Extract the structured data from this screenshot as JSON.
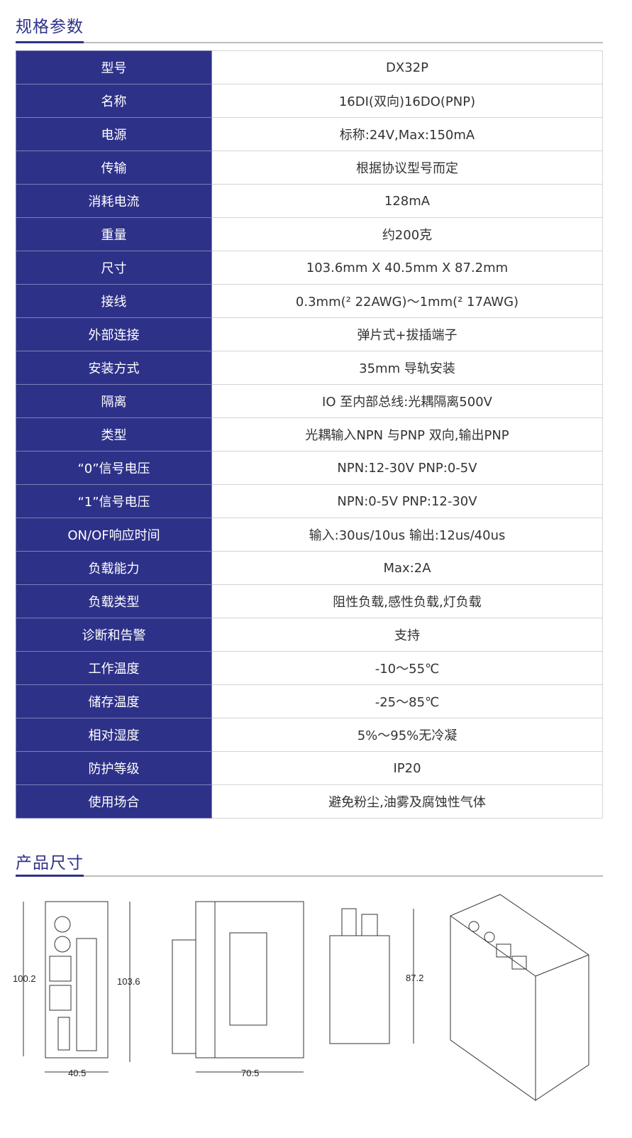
{
  "spec_section": {
    "title": "规格参数"
  },
  "specs": [
    {
      "label": "型号",
      "value": "DX32P"
    },
    {
      "label": "名称",
      "value": "16DI(双向)16DO(PNP)"
    },
    {
      "label": "电源",
      "value": "标称:24V,Max:150mA"
    },
    {
      "label": "传输",
      "value": "根据协议型号而定"
    },
    {
      "label": "消耗电流",
      "value": "128mA"
    },
    {
      "label": "重量",
      "value": "约200克"
    },
    {
      "label": "尺寸",
      "value": "103.6mm X 40.5mm X 87.2mm"
    },
    {
      "label": "接线",
      "value": "0.3mm(² 22AWG)～1mm(² 17AWG)"
    },
    {
      "label": "外部连接",
      "value": "弹片式+拔插端子"
    },
    {
      "label": "安装方式",
      "value": "35mm 导轨安装"
    },
    {
      "label": "隔离",
      "value": "IO 至内部总线:光耦隔离500V"
    },
    {
      "label": "类型",
      "value": "光耦输入NPN 与PNP 双向,输出PNP"
    },
    {
      "label": "“0”信号电压",
      "value": "NPN:12-30V PNP:0-5V"
    },
    {
      "label": "“1”信号电压",
      "value": "NPN:0-5V PNP:12-30V"
    },
    {
      "label": "ON/OF响应时间",
      "value": "输入:30us/10us 输出:12us/40us"
    },
    {
      "label": "负载能力",
      "value": "Max:2A"
    },
    {
      "label": "负载类型",
      "value": "阻性负载,感性负载,灯负载"
    },
    {
      "label": "诊断和告警",
      "value": "支持"
    },
    {
      "label": "工作温度",
      "value": "-10～55℃"
    },
    {
      "label": "储存温度",
      "value": "-25～85℃"
    },
    {
      "label": "相对湿度",
      "value": "5%～95%无冷凝"
    },
    {
      "label": "防护等级",
      "value": "IP20"
    },
    {
      "label": "使用场合",
      "value": "避免粉尘,油雾及腐蚀性气体"
    }
  ],
  "dimension_section": {
    "title": "产品尺寸"
  },
  "dimensions": {
    "front_height_left": "100.2",
    "front_height_right": "103.6",
    "front_width": "40.5",
    "side_depth": "70.5",
    "back_height": "87.2"
  },
  "colors": {
    "accent": "#2e3188"
  }
}
